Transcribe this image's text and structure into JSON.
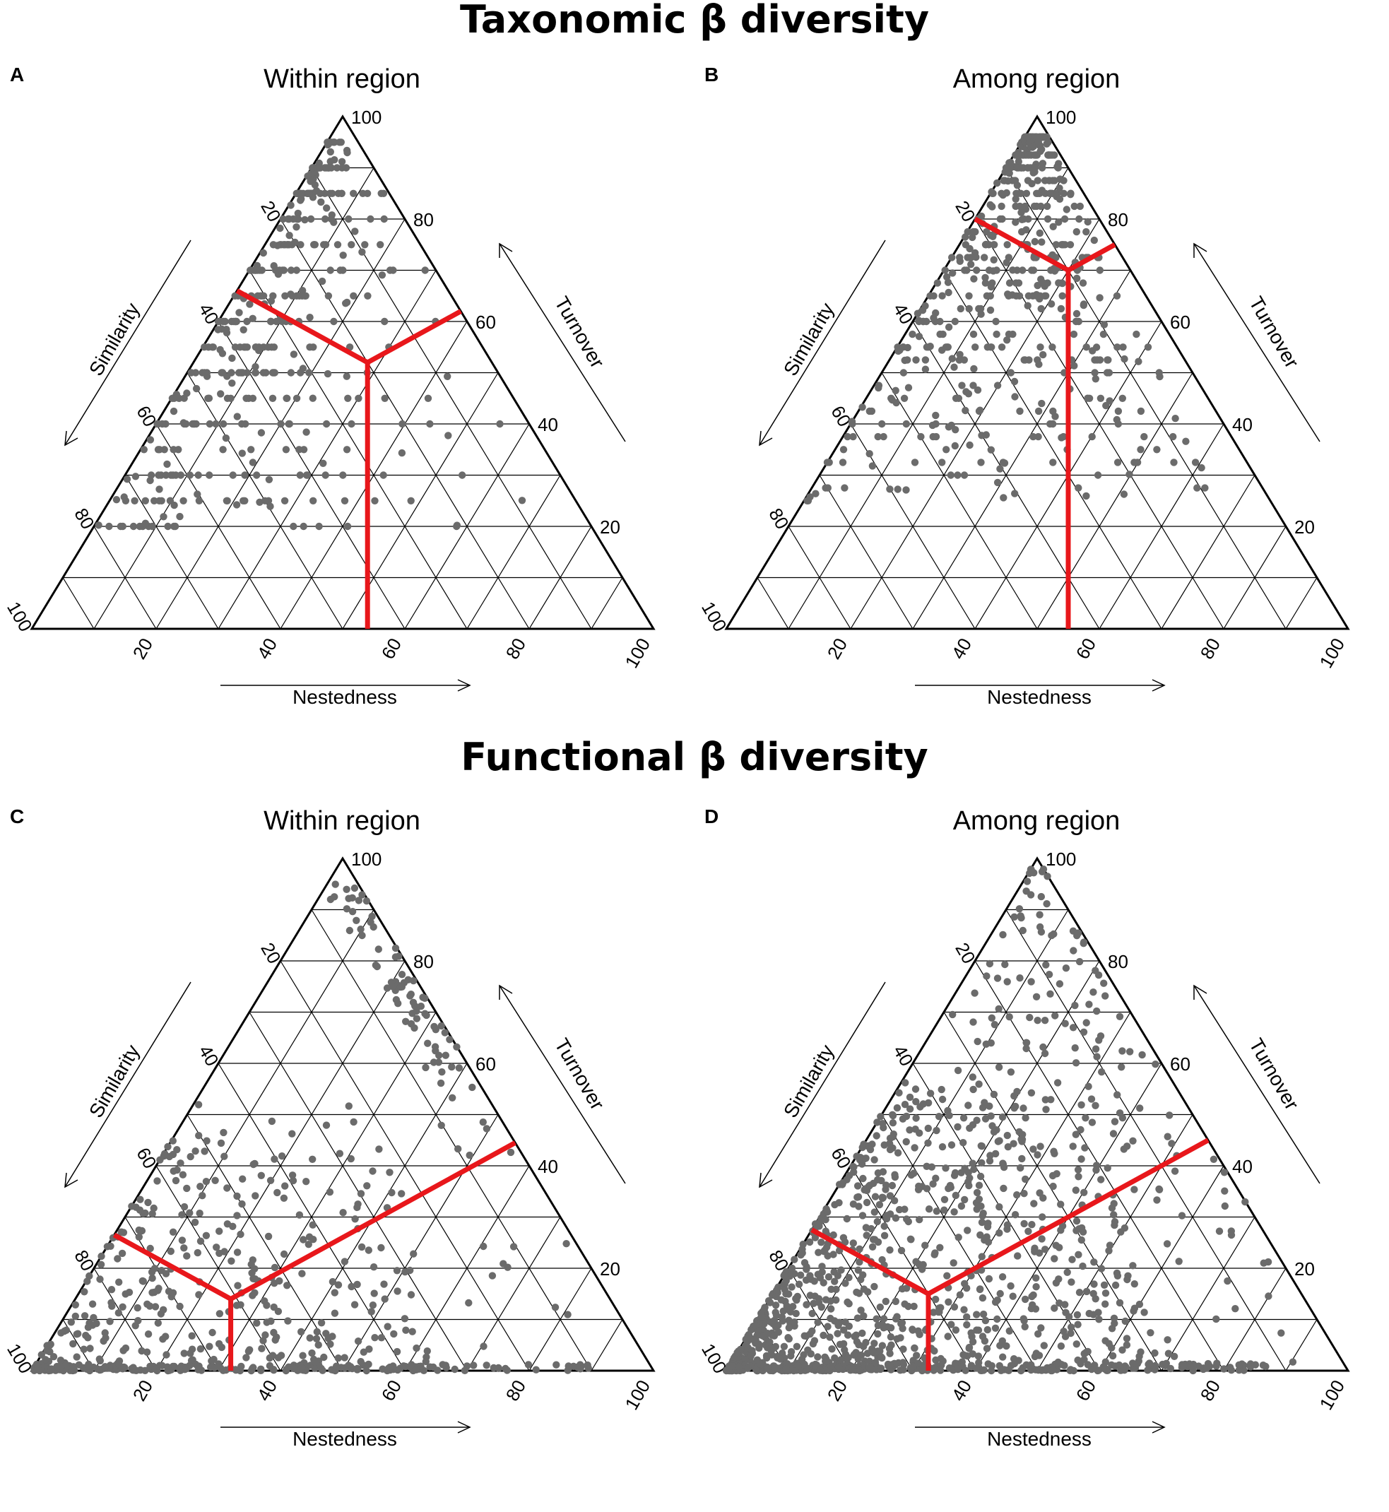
{
  "titles": {
    "top": "Taxonomic β diversity",
    "bottom": "Functional β diversity"
  },
  "colors": {
    "points": "#6b6b6b",
    "boundary": "#e8171b",
    "grid": "#000000"
  },
  "chart_data": [
    {
      "type": "scatter",
      "subtype": "ternary",
      "panel_label": "A",
      "title": "Within region",
      "axes": {
        "top": "Turnover",
        "left": "Similarity",
        "bottom": "Nestedness"
      },
      "ticks": [
        "20",
        "40",
        "60",
        "80",
        "100"
      ],
      "grid": true,
      "boundary_center": {
        "turnover": 52,
        "nestedness": 28,
        "similarity": 20
      },
      "point_density": "moderate",
      "point_distribution": "concentrated along the left edge (high Similarity, low Nestedness), mostly Turnover 20-100"
    },
    {
      "type": "scatter",
      "subtype": "ternary",
      "panel_label": "B",
      "title": "Among region",
      "axes": {
        "top": "Turnover",
        "left": "Similarity",
        "bottom": "Nestedness"
      },
      "ticks": [
        "20",
        "40",
        "60",
        "80",
        "100"
      ],
      "grid": true,
      "boundary_center": {
        "turnover": 70,
        "nestedness": 20,
        "similarity": 10
      },
      "point_density": "dense",
      "point_distribution": "concentrated near the top vertex (high Turnover), Turnover 40-95"
    },
    {
      "type": "scatter",
      "subtype": "ternary",
      "panel_label": "C",
      "title": "Within region",
      "axes": {
        "top": "Turnover",
        "left": "Similarity",
        "bottom": "Nestedness"
      },
      "ticks": [
        "20",
        "40",
        "60",
        "80",
        "100"
      ],
      "grid": true,
      "boundary_center": {
        "turnover": 14,
        "nestedness": 25,
        "similarity": 61
      },
      "point_density": "moderate",
      "point_distribution": "concentrated in the lower-left corner (high Similarity) and along the bottom edge, plus a cluster on the right edge near the top"
    },
    {
      "type": "scatter",
      "subtype": "ternary",
      "panel_label": "D",
      "title": "Among region",
      "axes": {
        "top": "Turnover",
        "left": "Similarity",
        "bottom": "Nestedness"
      },
      "ticks": [
        "20",
        "40",
        "60",
        "80",
        "100"
      ],
      "grid": true,
      "boundary_center": {
        "turnover": 15,
        "nestedness": 25,
        "similarity": 60
      },
      "point_density": "very dense",
      "point_distribution": "very dense in the lower-left corner (high Similarity) and along the bottom edge, scattered throughout the interior"
    }
  ]
}
